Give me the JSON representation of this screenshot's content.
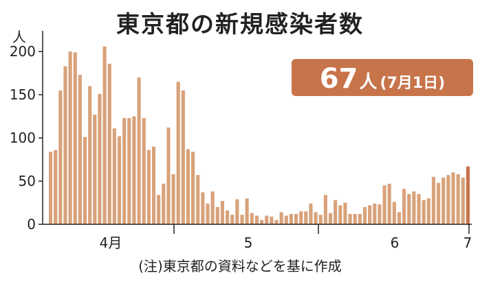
{
  "title": "東京都の新規感染者数",
  "badge": {
    "value": "67",
    "unit": "人",
    "date": "(7月1日)"
  },
  "note": "(注)東京都の資料などを基に作成",
  "colors": {
    "bar": "#d9a27a",
    "bar_edge": "#c8744a",
    "last_bar": "#c8744a",
    "badge_bg": "#c8744a",
    "axis": "#222222"
  },
  "chart_data": {
    "type": "bar",
    "ylabel": "人",
    "ylim": [
      0,
      220
    ],
    "yticks": [
      0,
      50,
      100,
      150,
      200
    ],
    "xtick_labels": [
      "4月",
      "5",
      "6",
      "7"
    ],
    "grid": false,
    "values": [
      84,
      86,
      155,
      183,
      200,
      199,
      173,
      101,
      160,
      127,
      151,
      206,
      186,
      111,
      102,
      123,
      123,
      125,
      170,
      123,
      86,
      90,
      34,
      47,
      112,
      58,
      165,
      155,
      87,
      84,
      57,
      37,
      24,
      38,
      20,
      27,
      16,
      11,
      29,
      11,
      30,
      13,
      10,
      5,
      10,
      9,
      5,
      14,
      10,
      12,
      12,
      15,
      15,
      24,
      14,
      11,
      34,
      13,
      28,
      22,
      25,
      12,
      12,
      12,
      20,
      22,
      24,
      23,
      45,
      47,
      26,
      14,
      41,
      35,
      38,
      35,
      28,
      30,
      55,
      48,
      54,
      57,
      60,
      58,
      54,
      67
    ],
    "last_value": 67
  }
}
